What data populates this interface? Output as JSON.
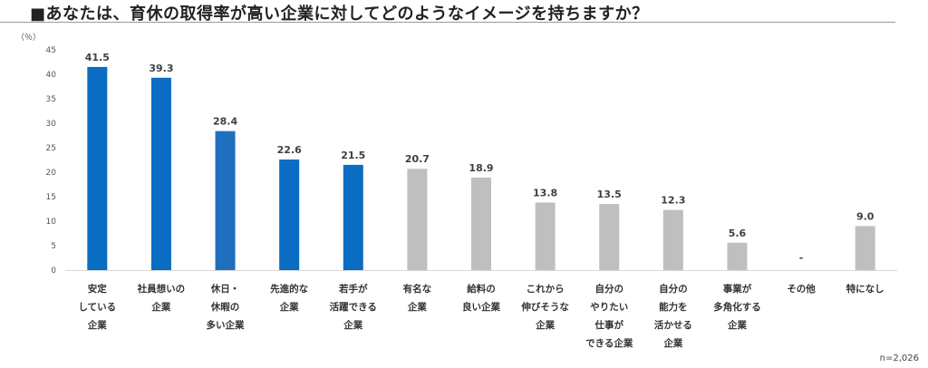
{
  "title": "■あなたは、育休の取得率が高い企業に対してどのようなイメージを持ちますか？",
  "sample_note": "n=2,026",
  "unit_label": "（％）",
  "chart_data": {
    "type": "bar",
    "title": "■あなたは、育休の取得率が高い企業に対してどのようなイメージを持ちますか？",
    "ylabel": "（％）",
    "xlabel": "",
    "ylim": [
      0,
      45
    ],
    "yticks": [
      0,
      5,
      10,
      15,
      20,
      25,
      30,
      35,
      40,
      45
    ],
    "grid": false,
    "categories": [
      "安定している企業",
      "社員想いの企業",
      "休日・休暇の多い企業",
      "先進的な企業",
      "若手が活躍できる企業",
      "有名な企業",
      "給料の良い企業",
      "これから伸びそうな企業",
      "自分のやりたい仕事ができる企業",
      "自分の能力を活かせる企業",
      "事業が多角化する企業",
      "その他",
      "特になし"
    ],
    "category_lines": [
      [
        "安定",
        "している",
        "企業"
      ],
      [
        "社員想いの",
        "企業"
      ],
      [
        "休日・",
        "休暇の",
        "多い企業"
      ],
      [
        "先進的な",
        "企業"
      ],
      [
        "若手が",
        "活躍できる",
        "企業"
      ],
      [
        "有名な",
        "企業"
      ],
      [
        "給料の",
        "良い企業"
      ],
      [
        "これから",
        "伸びそうな",
        "企業"
      ],
      [
        "自分の",
        "やりたい",
        "仕事が",
        "できる企業"
      ],
      [
        "自分の",
        "能力を",
        "活かせる",
        "企業"
      ],
      [
        "事業が",
        "多角化する",
        "企業"
      ],
      [
        "その他"
      ],
      [
        "特になし"
      ]
    ],
    "values": [
      41.5,
      39.3,
      28.4,
      22.6,
      21.5,
      20.7,
      18.9,
      13.8,
      13.5,
      12.3,
      5.6,
      null,
      9.0
    ],
    "value_labels": [
      "41.5",
      "39.3",
      "28.4",
      "22.6",
      "21.5",
      "20.7",
      "18.9",
      "13.8",
      "13.5",
      "12.3",
      "5.6",
      "-",
      "9.0"
    ],
    "colors": [
      "#0A6CC2",
      "#0A6CC2",
      "#1F6FBF",
      "#0A6CC2",
      "#0A6CC2",
      "#BFBFBF",
      "#BFBFBF",
      "#BFBFBF",
      "#BFBFBF",
      "#BFBFBF",
      "#BFBFBF",
      "#BFBFBF",
      "#BFBFBF"
    ]
  }
}
